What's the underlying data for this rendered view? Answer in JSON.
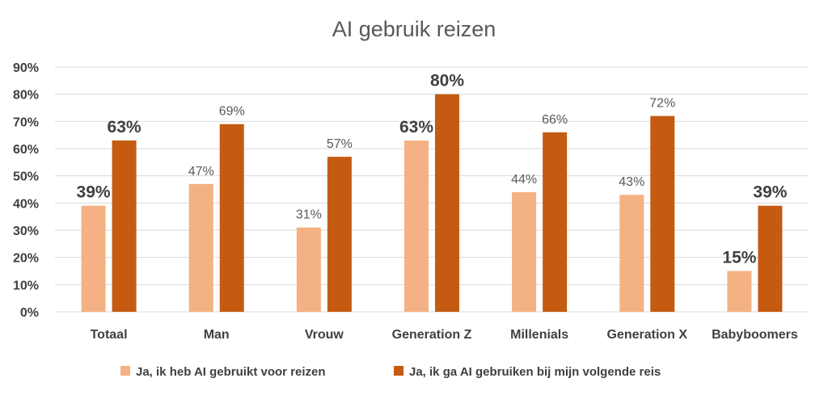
{
  "chart_data": {
    "type": "bar",
    "title": "AI gebruik reizen",
    "categories": [
      "Totaal",
      "Man",
      "Vrouw",
      "Generation Z",
      "Millenials",
      "Generation X",
      "Babyboomers"
    ],
    "series": [
      {
        "name": "Ja, ik heb AI gebruikt voor reizen",
        "color": "#f4b183",
        "values": [
          39,
          47,
          31,
          63,
          44,
          43,
          15
        ],
        "labels": [
          "39%",
          "47%",
          "31%",
          "63%",
          "44%",
          "43%",
          "15%"
        ],
        "label_emphasis": [
          true,
          false,
          false,
          true,
          false,
          false,
          true
        ]
      },
      {
        "name": "Ja, ik ga AI gebruiken bij mijn volgende reis",
        "color": "#c55a11",
        "values": [
          63,
          69,
          57,
          80,
          66,
          72,
          39
        ],
        "labels": [
          "63%",
          "69%",
          "57%",
          "80%",
          "66%",
          "72%",
          "39%"
        ],
        "label_emphasis": [
          true,
          false,
          false,
          true,
          false,
          false,
          true
        ]
      }
    ],
    "yticks": [
      "0%",
      "10%",
      "20%",
      "30%",
      "40%",
      "50%",
      "60%",
      "70%",
      "80%",
      "90%"
    ],
    "ylim": [
      0,
      90
    ],
    "grid": true,
    "legend_position": "bottom"
  }
}
